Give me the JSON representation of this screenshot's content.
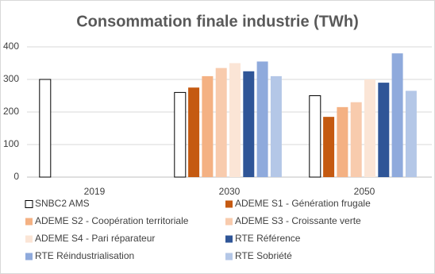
{
  "chart_data": {
    "type": "bar",
    "title": "Consommation finale industrie (TWh)",
    "categories": [
      "2019",
      "2030",
      "2050"
    ],
    "series": [
      {
        "name": "SNBC2 AMS",
        "color": "#ffffff",
        "values": [
          300,
          260,
          250
        ]
      },
      {
        "name": "ADEME S1 - Génération frugale",
        "color": "#c55a11",
        "values": [
          null,
          275,
          185
        ]
      },
      {
        "name": "ADEME S2 - Coopération territoriale",
        "color": "#f4b183",
        "values": [
          null,
          310,
          215
        ]
      },
      {
        "name": "ADEME S3 - Croissante verte",
        "color": "#f8cbad",
        "values": [
          null,
          335,
          230
        ]
      },
      {
        "name": "ADEME S4 - Pari réparateur",
        "color": "#fbe5d6",
        "values": [
          null,
          350,
          300
        ]
      },
      {
        "name": "RTE Référence",
        "color": "#2f5597",
        "values": [
          null,
          325,
          290
        ]
      },
      {
        "name": "RTE Réindustrialisation",
        "color": "#8faadc",
        "values": [
          null,
          355,
          380
        ]
      },
      {
        "name": "RTE Sobriété",
        "color": "#b4c7e7",
        "values": [
          null,
          310,
          265
        ]
      }
    ],
    "ylim": [
      0,
      400
    ],
    "yticks": [
      0,
      100,
      200,
      300,
      400
    ],
    "grid": true,
    "legend": "bottom"
  }
}
